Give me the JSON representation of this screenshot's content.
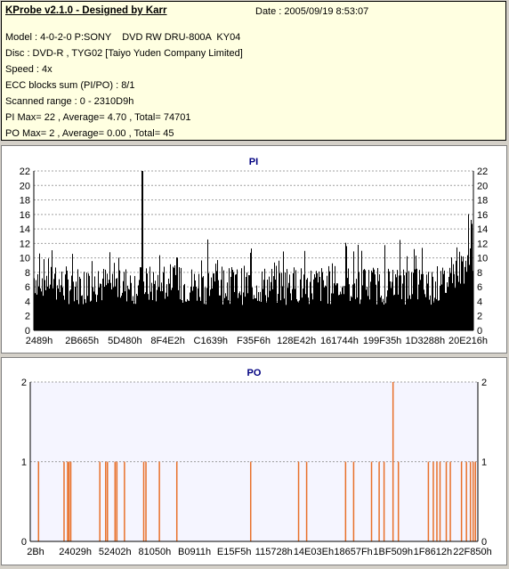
{
  "header": {
    "app_title": "KProbe v2.1.0 - Designed by Karr",
    "date_label": "Date",
    "date_value": "2005/09/19 8:53:07"
  },
  "info": {
    "model": "Model : 4-0-2-0 P:SONY    DVD RW DRU-800A  KY04",
    "disc": "Disc : DVD-R , TYG02 [Taiyo Yuden Company Limited]",
    "speed": "Speed : 4x",
    "ecc": "ECC blocks sum (PI/PO) : 8/1",
    "range": "Scanned range : 0 - 2310D9h",
    "pi_stats": "PI Max= 22 , Average= 4.70 , Total= 74701",
    "po_stats": "PO Max= 2 , Average= 0.00 , Total= 45"
  },
  "colors": {
    "pi_bars": "#000000",
    "po_bars": "#e8702a",
    "pi_bg": "#ffffff",
    "po_bg": "#f5f5ff",
    "title": "#000080"
  },
  "chart_data": [
    {
      "type": "bar",
      "title": "PI",
      "ylim": [
        0,
        22
      ],
      "yticks": [
        0,
        2,
        4,
        6,
        8,
        10,
        12,
        14,
        16,
        18,
        20,
        22
      ],
      "xticks": [
        "2489h",
        "2B665h",
        "5D480h",
        "8F4E2h",
        "C1639h",
        "F35F6h",
        "128E42h",
        "161744h",
        "199F35h",
        "1D3288h",
        "20E216h"
      ],
      "grid": true,
      "avg": 4.7,
      "max": 22,
      "max_position_fraction": 0.245
    },
    {
      "type": "bar",
      "title": "PO",
      "ylim": [
        0,
        2
      ],
      "yticks": [
        0,
        1,
        2
      ],
      "xticks": [
        "2Bh",
        "24029h",
        "52402h",
        "81050h",
        "B0911h",
        "E15F5h",
        "115728h",
        "14E03Eh",
        "18657Fh",
        "1BF509h",
        "1F8612h",
        "22F850h"
      ],
      "grid": true,
      "x_fraction_of_span": [
        0.017,
        0.074,
        0.082,
        0.085,
        0.089,
        0.154,
        0.167,
        0.171,
        0.188,
        0.192,
        0.209,
        0.252,
        0.257,
        0.287,
        0.326,
        0.491,
        0.598,
        0.616,
        0.703,
        0.721,
        0.761,
        0.778,
        0.789,
        0.809,
        0.821,
        0.888,
        0.899,
        0.907,
        0.914,
        0.928,
        0.937,
        0.962,
        0.973,
        0.982,
        0.988,
        0.993
      ],
      "values": [
        1,
        1,
        1,
        1,
        1,
        1,
        1,
        1,
        1,
        1,
        1,
        1,
        1,
        1,
        1,
        1,
        1,
        1,
        1,
        1,
        1,
        1,
        1,
        2,
        1,
        1,
        1,
        1,
        1,
        1,
        1,
        1,
        1,
        1,
        1,
        1
      ]
    }
  ]
}
